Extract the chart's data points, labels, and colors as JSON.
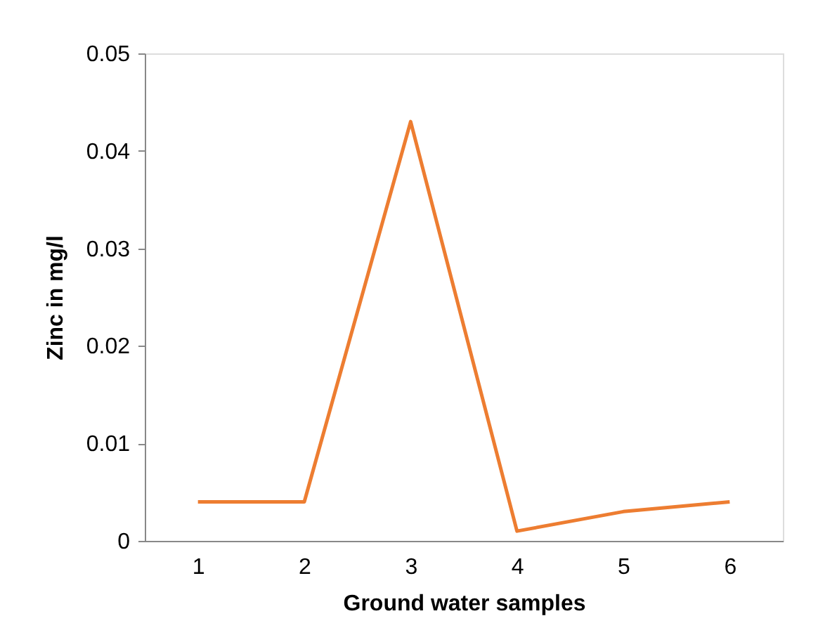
{
  "chart_data": {
    "type": "line",
    "xlabel": "Ground water samples",
    "ylabel": "Zinc in mg/l",
    "categories": [
      "1",
      "2",
      "3",
      "4",
      "5",
      "6"
    ],
    "series": [
      {
        "color": "#ed7d31",
        "values": [
          0.004,
          0.004,
          0.043,
          0.001,
          0.003,
          0.004
        ]
      }
    ],
    "ylim": [
      0,
      0.05
    ],
    "yticks": [
      0,
      0.01,
      0.02,
      0.03,
      0.04,
      0.05
    ],
    "grid": false,
    "marker": "none",
    "line_style": "solid"
  }
}
